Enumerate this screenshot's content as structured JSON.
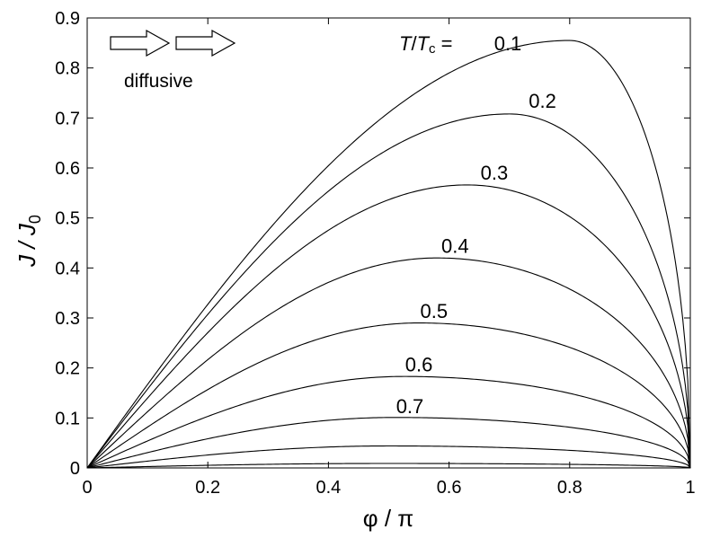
{
  "chart_data": {
    "type": "line",
    "title": "",
    "xlabel": "φ / π",
    "ylabel_main": "J / J",
    "ylabel_sub": "0",
    "xlim": [
      0,
      1
    ],
    "ylim": [
      0,
      0.9
    ],
    "xticks": [
      0,
      0.2,
      0.4,
      0.6,
      0.8,
      1
    ],
    "xtick_labels": [
      "0",
      "0.2",
      "0.4",
      "0.6",
      "0.8",
      "1"
    ],
    "yticks": [
      0,
      0.1,
      0.2,
      0.3,
      0.4,
      0.5,
      0.6,
      0.7,
      0.8,
      0.9
    ],
    "ytick_labels": [
      "0",
      "0.1",
      "0.2",
      "0.3",
      "0.4",
      "0.5",
      "0.6",
      "0.7",
      "0.8",
      "0.9"
    ],
    "grid": false,
    "annotation": "diffusive",
    "legend_prefix": {
      "T": "T",
      "slash": "/",
      "Tc_main": "T",
      "Tc_sub": "c",
      "eq": " = "
    },
    "series": [
      {
        "name": "0.1",
        "label": "0.1",
        "label_at": [
          0.8,
          0.875
        ],
        "peak": [
          0.8,
          0.855
        ],
        "values": [
          0.855
        ]
      },
      {
        "name": "0.2",
        "label": "0.2",
        "label_at": [
          0.755,
          0.72
        ],
        "peak": [
          0.7,
          0.708
        ],
        "values": [
          0.708
        ]
      },
      {
        "name": "0.3",
        "label": "0.3",
        "label_at": [
          0.675,
          0.577
        ],
        "peak": [
          0.63,
          0.566
        ],
        "values": [
          0.566
        ]
      },
      {
        "name": "0.4",
        "label": "0.4",
        "label_at": [
          0.61,
          0.43
        ],
        "peak": [
          0.58,
          0.42
        ],
        "values": [
          0.42
        ]
      },
      {
        "name": "0.5",
        "label": "0.5",
        "label_at": [
          0.575,
          0.3
        ],
        "peak": [
          0.55,
          0.29
        ],
        "values": [
          0.29
        ]
      },
      {
        "name": "0.6",
        "label": "0.6",
        "label_at": [
          0.55,
          0.193
        ],
        "peak": [
          0.525,
          0.183
        ],
        "values": [
          0.183
        ]
      },
      {
        "name": "0.7",
        "label": "0.7",
        "label_at": [
          0.535,
          0.11
        ],
        "peak": [
          0.51,
          0.101
        ],
        "values": [
          0.101
        ]
      },
      {
        "name": "",
        "label": "",
        "peak": [
          0.5,
          0.044
        ],
        "values": [
          0.044
        ]
      },
      {
        "name": "",
        "label": "",
        "peak": [
          0.5,
          0.009
        ],
        "values": [
          0.009
        ]
      }
    ]
  }
}
